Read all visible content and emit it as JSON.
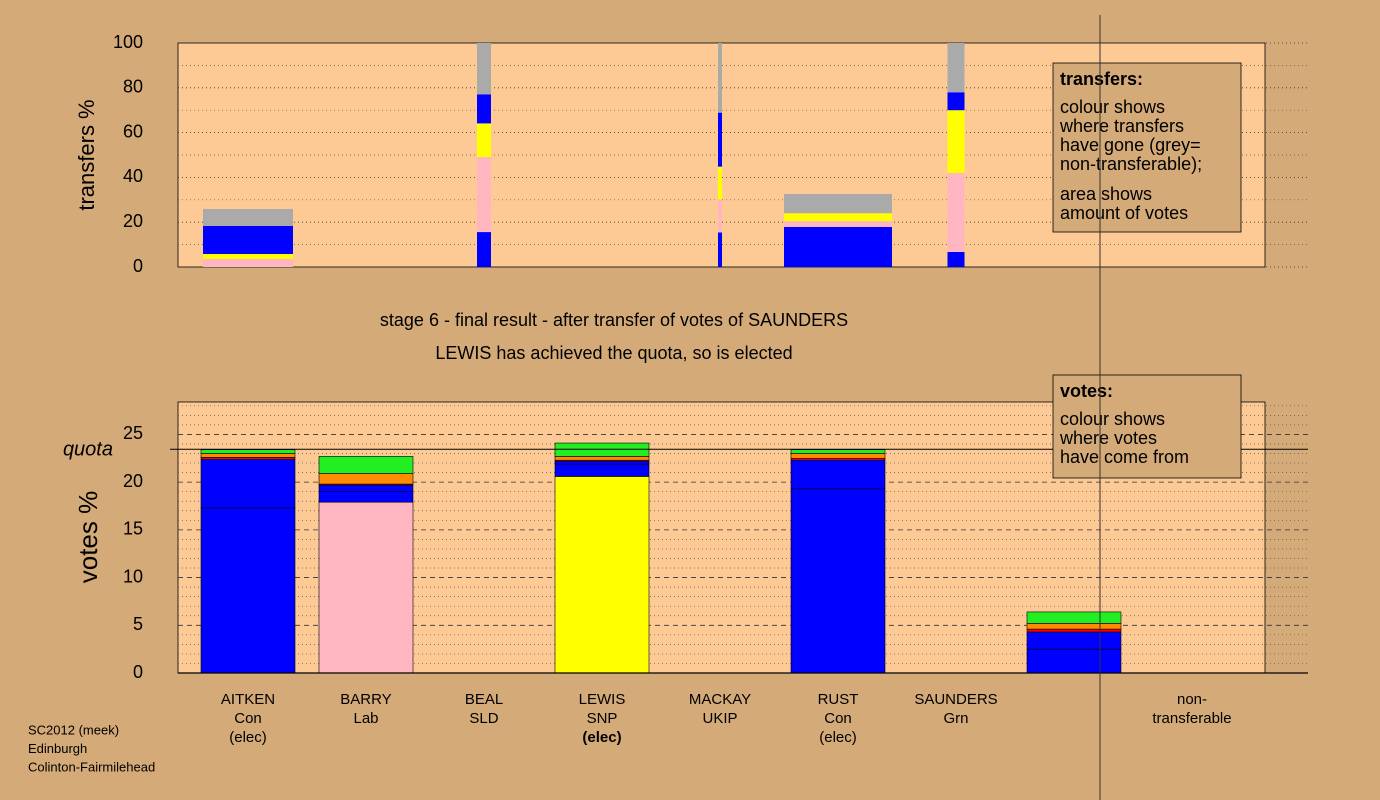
{
  "chart_data": [
    {
      "type": "transfer-bar",
      "ylabel": "transfers %",
      "ylim": [
        0,
        100
      ],
      "yticks": [
        0,
        20,
        40,
        60,
        80,
        100
      ],
      "minor_yticks": [
        10,
        30,
        50,
        70,
        90
      ],
      "bars": [
        {
          "segments": [
            {
              "color": "#ffb6c1",
              "value": 3.6
            },
            {
              "color": "#ffff00",
              "value": 2.2
            },
            {
              "color": "#0000ff",
              "value": 12.5
            },
            {
              "color": "#aaaaaa",
              "value": 7.6
            }
          ]
        },
        {
          "segments": [
            {
              "color": "#0000ff",
              "value": 15.6
            },
            {
              "color": "#ffb6c1",
              "value": 33.5
            },
            {
              "color": "#ffff00",
              "value": 15
            },
            {
              "color": "#0000ff",
              "value": 13
            },
            {
              "color": "#aaaaaa",
              "value": 22.9
            }
          ]
        },
        {
          "segments": [
            {
              "color": "#0000ff",
              "value": 15.4
            },
            {
              "color": "#ffb6c1",
              "value": 14.7
            },
            {
              "color": "#ffff00",
              "value": 14.7
            },
            {
              "color": "#0000ff",
              "value": 24.1
            },
            {
              "color": "#aaaaaa",
              "value": 31.1
            }
          ]
        },
        {
          "segments": [
            {
              "color": "#0000ff",
              "value": 17.9
            },
            {
              "color": "#ffb6c1",
              "value": 2.6
            },
            {
              "color": "#ffff00",
              "value": 3.5
            },
            {
              "color": "#aaaaaa",
              "value": 8.6
            }
          ]
        },
        {
          "segments": [
            {
              "color": "#0000ff",
              "value": 6.7
            },
            {
              "color": "#ffb6c1",
              "value": 35.3
            },
            {
              "color": "#ffff00",
              "value": 28
            },
            {
              "color": "#0000ff",
              "value": 8
            },
            {
              "color": "#aaaaaa",
              "value": 22
            }
          ]
        }
      ],
      "legend": {
        "title": "transfers:",
        "paragraphs": [
          [
            "colour shows",
            "where transfers",
            "have gone (grey=",
            "non-transferable);"
          ],
          [
            "area shows",
            "amount of votes"
          ]
        ]
      }
    },
    {
      "type": "vote-bar",
      "title": [
        "stage 6 - final result - after transfer of votes of SAUNDERS",
        "LEWIS has achieved the quota, so is elected"
      ],
      "ylabel": "votes %",
      "ylim": [
        0,
        28.4
      ],
      "yticks": [
        0,
        5,
        10,
        15,
        20,
        25
      ],
      "minor_yticks": [
        1,
        2,
        3,
        4,
        6,
        7,
        8,
        9,
        11,
        12,
        13,
        14,
        16,
        17,
        18,
        19,
        21,
        22,
        23,
        24,
        26,
        27,
        28
      ],
      "quota": {
        "label": "quota",
        "value": 23.45
      },
      "categories": [
        {
          "lines": [
            "AITKEN",
            "Con",
            "(elec)"
          ]
        },
        {
          "lines": [
            "BARRY",
            "Lab"
          ]
        },
        {
          "lines": [
            "BEAL",
            "SLD"
          ]
        },
        {
          "lines": [
            "LEWIS",
            "SNP"
          ],
          "bold": "(elec)"
        },
        {
          "lines": [
            "MACKAY",
            "UKIP"
          ]
        },
        {
          "lines": [
            "RUST",
            "Con",
            "(elec)"
          ]
        },
        {
          "lines": [
            "SAUNDERS",
            "Grn"
          ]
        },
        {
          "lines": [
            "non-",
            "transferable"
          ]
        }
      ],
      "bars": [
        {
          "segments": [
            {
              "color": "#0000ff",
              "value": 17.3
            },
            {
              "color": "#0000ff",
              "value": 5.1
            },
            {
              "color": "#ff0000",
              "value": 0.2
            },
            {
              "color": "#ff8c00",
              "value": 0.4
            },
            {
              "color": "#22ee22",
              "value": 0.4
            }
          ]
        },
        {
          "segments": [
            {
              "color": "#ffb6c1",
              "value": 17.9
            },
            {
              "color": "#0000ff",
              "value": 1.1
            },
            {
              "color": "#0000ff",
              "value": 0.7
            },
            {
              "color": "#ff0000",
              "value": 0.1
            },
            {
              "color": "#ff8c00",
              "value": 1.1
            },
            {
              "color": "#22ee22",
              "value": 1.8
            }
          ]
        },
        {
          "segments": [
            {
              "color": "#ffff00",
              "value": 0
            }
          ]
        },
        {
          "segments": [
            {
              "color": "#ffff00",
              "value": 20.6
            },
            {
              "color": "#0000ff",
              "value": 1.3
            },
            {
              "color": "#0000ff",
              "value": 0.3
            },
            {
              "color": "#ff0000",
              "value": 0.1
            },
            {
              "color": "#ff8c00",
              "value": 0.4
            },
            {
              "color": "#22ee22",
              "value": 1.4
            }
          ]
        },
        {
          "segments": [
            {
              "color": "#0000ff",
              "value": 0
            }
          ]
        },
        {
          "segments": [
            {
              "color": "#0000ff",
              "value": 19.3
            },
            {
              "color": "#0000ff",
              "value": 3
            },
            {
              "color": "#ff0000",
              "value": 0.2
            },
            {
              "color": "#ff8c00",
              "value": 0.5
            },
            {
              "color": "#22ee22",
              "value": 0.4
            }
          ]
        },
        {
          "segments": [
            {
              "color": "#22ee22",
              "value": 0
            }
          ]
        },
        {
          "segments": [
            {
              "color": "#0000ff",
              "value": 2.5
            },
            {
              "color": "#0000ff",
              "value": 1.8
            },
            {
              "color": "#ff0000",
              "value": 0.3
            },
            {
              "color": "#ff8c00",
              "value": 0.6
            },
            {
              "color": "#22ee22",
              "value": 1.2
            }
          ]
        }
      ],
      "legend": {
        "title": "votes:",
        "paragraphs": [
          [
            "colour shows",
            "where votes",
            "have come from"
          ]
        ]
      }
    }
  ],
  "footer": [
    "SC2012 (meek)",
    "Edinburgh",
    "Colinton-Fairmilehead"
  ]
}
